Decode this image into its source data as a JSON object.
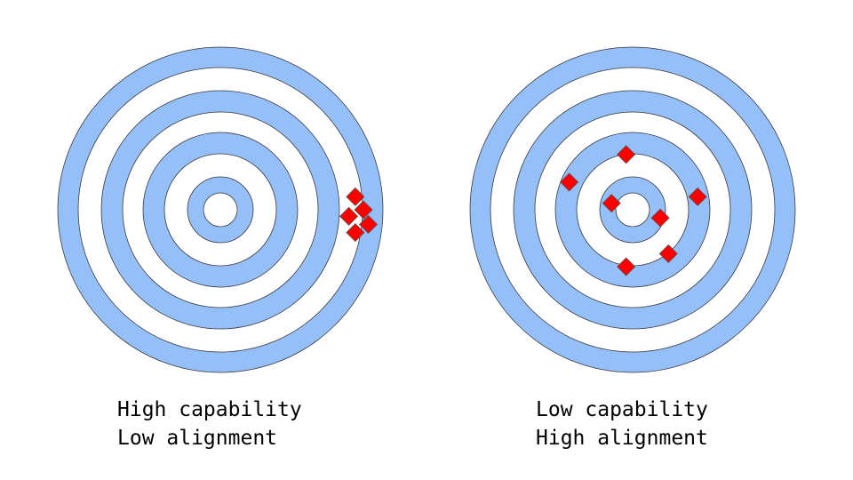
{
  "colors": {
    "ring": "#95bff8",
    "ring_stroke": "#3a3a3a",
    "marker": "#ff0000",
    "marker_stroke": "#555555"
  },
  "targets": [
    {
      "caption_line1": "High capability",
      "caption_line2": "Low alignment",
      "hits": [
        [
          0.83,
          0.08
        ],
        [
          0.88,
          0.0
        ],
        [
          0.79,
          -0.04
        ],
        [
          0.91,
          -0.09
        ],
        [
          0.83,
          -0.14
        ]
      ]
    },
    {
      "caption_line1": "Low capability",
      "caption_line2": "High alignment",
      "hits": [
        [
          -0.04,
          0.34
        ],
        [
          -0.39,
          0.17
        ],
        [
          0.4,
          0.08
        ],
        [
          -0.13,
          0.04
        ],
        [
          0.17,
          -0.05
        ],
        [
          0.22,
          -0.27
        ],
        [
          -0.04,
          -0.35
        ]
      ]
    }
  ]
}
